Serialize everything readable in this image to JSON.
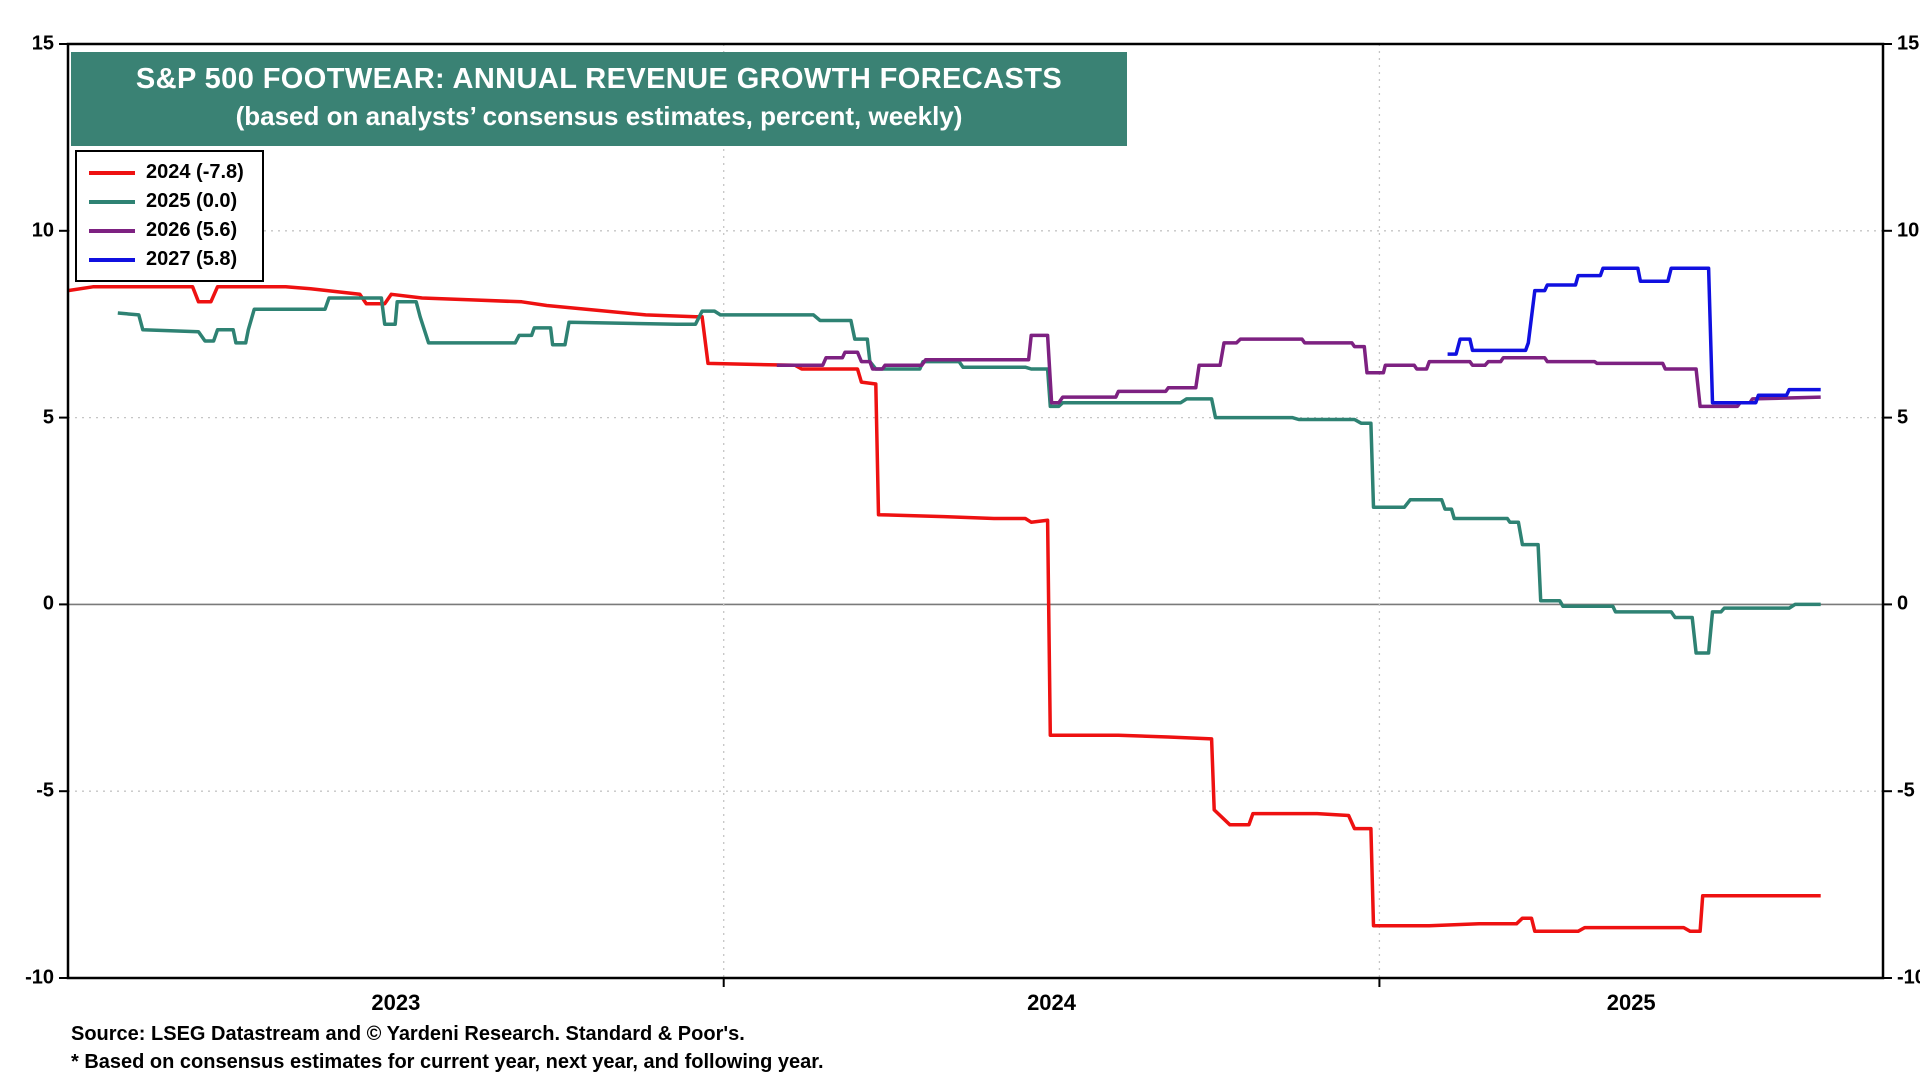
{
  "colors": {
    "title_bg": "#3A8274",
    "title_text": "#FFFFFF",
    "grid": "#C5C5C5",
    "zero_line": "#7A7A7A",
    "border": "#000000",
    "background": "#FFFFFF"
  },
  "footer": {
    "source": "Source: LSEG Datastream and © Yardeni Research. Standard & Poor's.",
    "note": "* Based on consensus estimates for current year, next year, and following year."
  },
  "chart_data": {
    "type": "line",
    "title": "S&P 500 FOOTWEAR: ANNUAL REVENUE GROWTH FORECASTS",
    "subtitle": "(based on analysts’ consensus estimates, percent, weekly)",
    "xlabel": "",
    "ylabel": "",
    "ylim": [
      -10,
      15
    ],
    "yticks": [
      -10,
      -5,
      0,
      5,
      10,
      15
    ],
    "x_start": 2023.0,
    "x_end": 2025.768,
    "x_year_boundaries": [
      2024,
      2025
    ],
    "xtick_labels": [
      "2023",
      "2024",
      "2025"
    ],
    "grid_on": true,
    "legend_position": "top-left",
    "series": [
      {
        "name": "2024 (-7.8)",
        "color": "#EE1111",
        "points": [
          [
            2023.0,
            8.4
          ],
          [
            2023.038,
            8.5
          ],
          [
            2023.19,
            8.5
          ],
          [
            2023.199,
            8.1
          ],
          [
            2023.218,
            8.1
          ],
          [
            2023.228,
            8.5
          ],
          [
            2023.332,
            8.5
          ],
          [
            2023.37,
            8.45
          ],
          [
            2023.445,
            8.3
          ],
          [
            2023.455,
            8.05
          ],
          [
            2023.483,
            8.05
          ],
          [
            2023.493,
            8.3
          ],
          [
            2023.54,
            8.2
          ],
          [
            2023.616,
            8.15
          ],
          [
            2023.692,
            8.1
          ],
          [
            2023.73,
            8.0
          ],
          [
            2023.881,
            7.75
          ],
          [
            2023.957,
            7.7
          ],
          [
            2023.967,
            7.7
          ],
          [
            2023.976,
            6.45
          ],
          [
            2024.109,
            6.4
          ],
          [
            2024.119,
            6.3
          ],
          [
            2024.204,
            6.3
          ],
          [
            2024.21,
            5.95
          ],
          [
            2024.232,
            5.9
          ],
          [
            2024.236,
            2.4
          ],
          [
            2024.336,
            2.35
          ],
          [
            2024.412,
            2.3
          ],
          [
            2024.46,
            2.3
          ],
          [
            2024.469,
            2.2
          ],
          [
            2024.494,
            2.25
          ],
          [
            2024.498,
            -3.5
          ],
          [
            2024.602,
            -3.5
          ],
          [
            2024.678,
            -3.55
          ],
          [
            2024.744,
            -3.6
          ],
          [
            2024.748,
            -5.5
          ],
          [
            2024.772,
            -5.9
          ],
          [
            2024.801,
            -5.9
          ],
          [
            2024.807,
            -5.6
          ],
          [
            2024.905,
            -5.6
          ],
          [
            2024.953,
            -5.65
          ],
          [
            2024.962,
            -6.0
          ],
          [
            2024.987,
            -6.0
          ],
          [
            2024.991,
            -8.6
          ],
          [
            2025.076,
            -8.6
          ],
          [
            2025.152,
            -8.55
          ],
          [
            2025.209,
            -8.55
          ],
          [
            2025.218,
            -8.4
          ],
          [
            2025.232,
            -8.4
          ],
          [
            2025.237,
            -8.75
          ],
          [
            2025.303,
            -8.75
          ],
          [
            2025.313,
            -8.65
          ],
          [
            2025.464,
            -8.65
          ],
          [
            2025.474,
            -8.75
          ],
          [
            2025.489,
            -8.75
          ],
          [
            2025.493,
            -7.8
          ],
          [
            2025.673,
            -7.8
          ]
        ]
      },
      {
        "name": "2025 (0.0)",
        "color": "#2E8273",
        "points": [
          [
            2023.076,
            7.8
          ],
          [
            2023.108,
            7.75
          ],
          [
            2023.114,
            7.35
          ],
          [
            2023.199,
            7.3
          ],
          [
            2023.209,
            7.05
          ],
          [
            2023.222,
            7.05
          ],
          [
            2023.228,
            7.35
          ],
          [
            2023.252,
            7.35
          ],
          [
            2023.256,
            7.0
          ],
          [
            2023.271,
            7.0
          ],
          [
            2023.275,
            7.35
          ],
          [
            2023.284,
            7.9
          ],
          [
            2023.392,
            7.9
          ],
          [
            2023.398,
            8.2
          ],
          [
            2023.478,
            8.2
          ],
          [
            2023.483,
            7.5
          ],
          [
            2023.499,
            7.5
          ],
          [
            2023.502,
            8.1
          ],
          [
            2023.531,
            8.1
          ],
          [
            2023.537,
            7.7
          ],
          [
            2023.55,
            7.0
          ],
          [
            2023.682,
            7.0
          ],
          [
            2023.688,
            7.2
          ],
          [
            2023.707,
            7.2
          ],
          [
            2023.711,
            7.4
          ],
          [
            2023.736,
            7.4
          ],
          [
            2023.739,
            6.95
          ],
          [
            2023.758,
            6.95
          ],
          [
            2023.764,
            7.55
          ],
          [
            2023.929,
            7.5
          ],
          [
            2023.957,
            7.5
          ],
          [
            2023.967,
            7.85
          ],
          [
            2023.986,
            7.85
          ],
          [
            2023.995,
            7.75
          ],
          [
            2024.137,
            7.75
          ],
          [
            2024.147,
            7.6
          ],
          [
            2024.194,
            7.6
          ],
          [
            2024.2,
            7.1
          ],
          [
            2024.219,
            7.1
          ],
          [
            2024.223,
            6.5
          ],
          [
            2024.232,
            6.3
          ],
          [
            2024.299,
            6.3
          ],
          [
            2024.304,
            6.5
          ],
          [
            2024.359,
            6.5
          ],
          [
            2024.365,
            6.35
          ],
          [
            2024.46,
            6.35
          ],
          [
            2024.469,
            6.3
          ],
          [
            2024.494,
            6.3
          ],
          [
            2024.498,
            5.3
          ],
          [
            2024.511,
            5.3
          ],
          [
            2024.517,
            5.4
          ],
          [
            2024.697,
            5.4
          ],
          [
            2024.706,
            5.5
          ],
          [
            2024.744,
            5.5
          ],
          [
            2024.75,
            5.0
          ],
          [
            2024.867,
            5.0
          ],
          [
            2024.877,
            4.95
          ],
          [
            2024.962,
            4.95
          ],
          [
            2024.972,
            4.85
          ],
          [
            2024.987,
            4.85
          ],
          [
            2024.991,
            2.6
          ],
          [
            2025.038,
            2.6
          ],
          [
            2025.047,
            2.8
          ],
          [
            2025.095,
            2.8
          ],
          [
            2025.1,
            2.55
          ],
          [
            2025.11,
            2.55
          ],
          [
            2025.114,
            2.3
          ],
          [
            2025.195,
            2.3
          ],
          [
            2025.199,
            2.2
          ],
          [
            2025.212,
            2.2
          ],
          [
            2025.218,
            1.6
          ],
          [
            2025.242,
            1.6
          ],
          [
            2025.246,
            0.1
          ],
          [
            2025.275,
            0.1
          ],
          [
            2025.28,
            -0.05
          ],
          [
            2025.356,
            -0.05
          ],
          [
            2025.36,
            -0.2
          ],
          [
            2025.445,
            -0.2
          ],
          [
            2025.451,
            -0.35
          ],
          [
            2025.477,
            -0.35
          ],
          [
            2025.483,
            -1.3
          ],
          [
            2025.502,
            -1.3
          ],
          [
            2025.508,
            -0.2
          ],
          [
            2025.521,
            -0.2
          ],
          [
            2025.526,
            -0.1
          ],
          [
            2025.625,
            -0.1
          ],
          [
            2025.634,
            0.0
          ],
          [
            2025.673,
            0.0
          ]
        ]
      },
      {
        "name": "2026 (5.6)",
        "color": "#7D2181",
        "points": [
          [
            2024.081,
            6.4
          ],
          [
            2024.151,
            6.4
          ],
          [
            2024.156,
            6.6
          ],
          [
            2024.181,
            6.6
          ],
          [
            2024.185,
            6.75
          ],
          [
            2024.204,
            6.75
          ],
          [
            2024.21,
            6.5
          ],
          [
            2024.223,
            6.5
          ],
          [
            2024.227,
            6.3
          ],
          [
            2024.242,
            6.3
          ],
          [
            2024.246,
            6.4
          ],
          [
            2024.302,
            6.4
          ],
          [
            2024.308,
            6.55
          ],
          [
            2024.465,
            6.55
          ],
          [
            2024.469,
            7.2
          ],
          [
            2024.494,
            7.2
          ],
          [
            2024.5,
            5.4
          ],
          [
            2024.511,
            5.4
          ],
          [
            2024.517,
            5.55
          ],
          [
            2024.598,
            5.55
          ],
          [
            2024.602,
            5.7
          ],
          [
            2024.674,
            5.7
          ],
          [
            2024.678,
            5.8
          ],
          [
            2024.72,
            5.8
          ],
          [
            2024.725,
            6.4
          ],
          [
            2024.757,
            6.4
          ],
          [
            2024.763,
            7.0
          ],
          [
            2024.782,
            7.0
          ],
          [
            2024.788,
            7.1
          ],
          [
            2024.882,
            7.1
          ],
          [
            2024.886,
            7.0
          ],
          [
            2024.958,
            7.0
          ],
          [
            2024.962,
            6.9
          ],
          [
            2024.977,
            6.9
          ],
          [
            2024.981,
            6.2
          ],
          [
            2025.006,
            6.2
          ],
          [
            2025.009,
            6.4
          ],
          [
            2025.053,
            6.4
          ],
          [
            2025.057,
            6.3
          ],
          [
            2025.072,
            6.3
          ],
          [
            2025.076,
            6.5
          ],
          [
            2025.138,
            6.5
          ],
          [
            2025.142,
            6.4
          ],
          [
            2025.161,
            6.4
          ],
          [
            2025.166,
            6.5
          ],
          [
            2025.185,
            6.5
          ],
          [
            2025.189,
            6.6
          ],
          [
            2025.252,
            6.6
          ],
          [
            2025.256,
            6.5
          ],
          [
            2025.328,
            6.5
          ],
          [
            2025.332,
            6.45
          ],
          [
            2025.432,
            6.45
          ],
          [
            2025.436,
            6.3
          ],
          [
            2025.483,
            6.3
          ],
          [
            2025.489,
            5.3
          ],
          [
            2025.546,
            5.3
          ],
          [
            2025.55,
            5.4
          ],
          [
            2025.565,
            5.4
          ],
          [
            2025.569,
            5.5
          ],
          [
            2025.673,
            5.55
          ]
        ]
      },
      {
        "name": "2027 (5.8)",
        "color": "#1010E0",
        "points": [
          [
            2025.104,
            6.7
          ],
          [
            2025.117,
            6.7
          ],
          [
            2025.123,
            7.1
          ],
          [
            2025.138,
            7.1
          ],
          [
            2025.142,
            6.8
          ],
          [
            2025.223,
            6.8
          ],
          [
            2025.227,
            7.0
          ],
          [
            2025.237,
            8.4
          ],
          [
            2025.252,
            8.4
          ],
          [
            2025.256,
            8.55
          ],
          [
            2025.299,
            8.55
          ],
          [
            2025.303,
            8.8
          ],
          [
            2025.337,
            8.8
          ],
          [
            2025.341,
            9.0
          ],
          [
            2025.394,
            9.0
          ],
          [
            2025.398,
            8.65
          ],
          [
            2025.44,
            8.65
          ],
          [
            2025.445,
            9.0
          ],
          [
            2025.502,
            9.0
          ],
          [
            2025.508,
            5.4
          ],
          [
            2025.574,
            5.4
          ],
          [
            2025.578,
            5.6
          ],
          [
            2025.621,
            5.6
          ],
          [
            2025.625,
            5.75
          ],
          [
            2025.673,
            5.75
          ]
        ]
      }
    ]
  }
}
